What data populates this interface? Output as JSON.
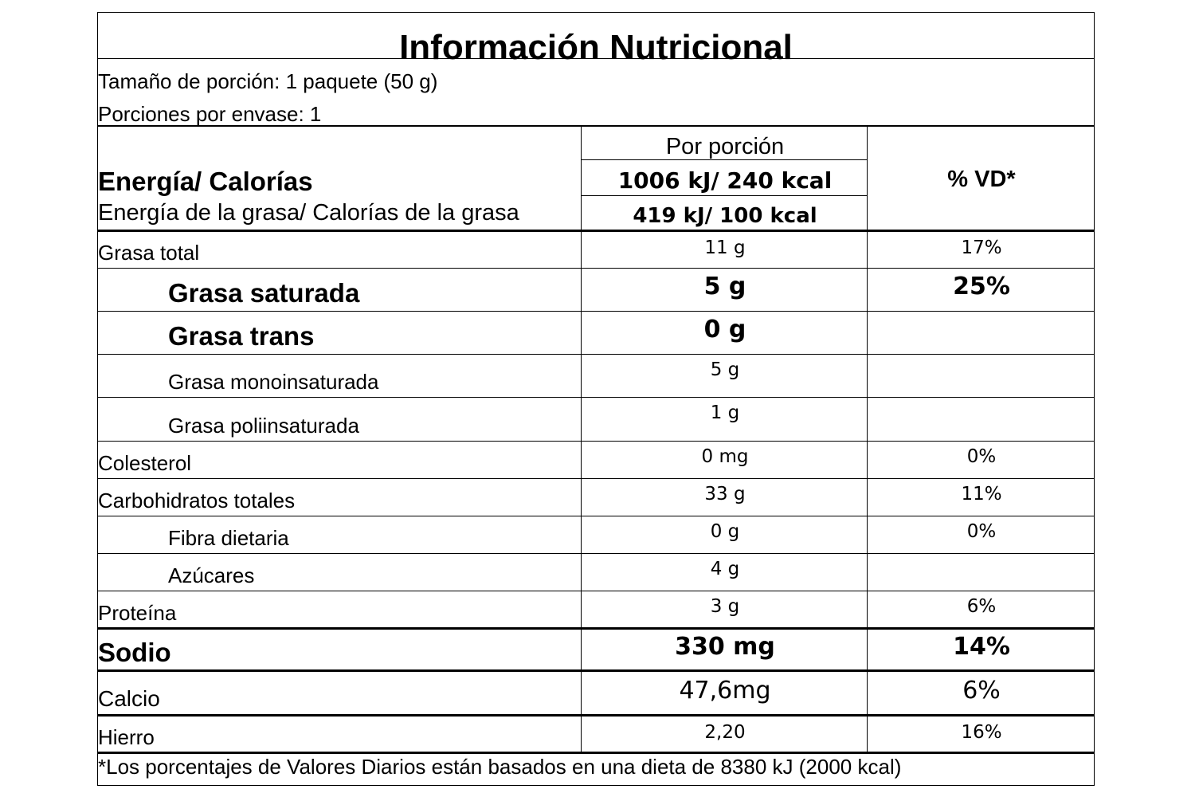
{
  "title": "Información Nutricional",
  "serving_size": "Tamaño de porción: 1 paquete (50 g)",
  "servings_per_container": "Porciones por envase: 1",
  "header": {
    "per_serving": "Por porción",
    "energy_label": "Energía/ Calorías",
    "energy_value": "1006 kJ/ 240 kcal",
    "fat_energy_label": "Energía de la grasa/ Calorías de la grasa",
    "fat_energy_value": "419 kJ/ 100 kcal",
    "dv_header": "% VD*"
  },
  "rows": [
    {
      "name": "Grasa total",
      "amount": "11 g",
      "dv": "17%"
    },
    {
      "name": "Grasa saturada",
      "amount": "5 g",
      "dv": "25%"
    },
    {
      "name": "Grasa trans",
      "amount": "0 g",
      "dv": ""
    },
    {
      "name": "Grasa monoinsaturada",
      "amount": "5 g",
      "dv": ""
    },
    {
      "name": "Grasa poliinsaturada",
      "amount": "1 g",
      "dv": ""
    },
    {
      "name": "Colesterol",
      "amount": "0 mg",
      "dv": "0%"
    },
    {
      "name": "Carbohidratos totales",
      "amount": "33 g",
      "dv": "11%"
    },
    {
      "name": "Fibra dietaria",
      "amount": "0 g",
      "dv": "0%"
    },
    {
      "name": "Azúcares",
      "amount": "4 g",
      "dv": ""
    },
    {
      "name": "Proteína",
      "amount": "3 g",
      "dv": "6%"
    },
    {
      "name": "Sodio",
      "amount": "330 mg",
      "dv": "14%"
    },
    {
      "name": "Calcio",
      "amount": "47,6mg",
      "dv": "6%"
    },
    {
      "name": "Hierro",
      "amount": "2,20",
      "dv": "16%"
    }
  ],
  "footnote": "*Los porcentajes de Valores Diarios están basados en una dieta de 8380 kJ (2000 kcal)"
}
